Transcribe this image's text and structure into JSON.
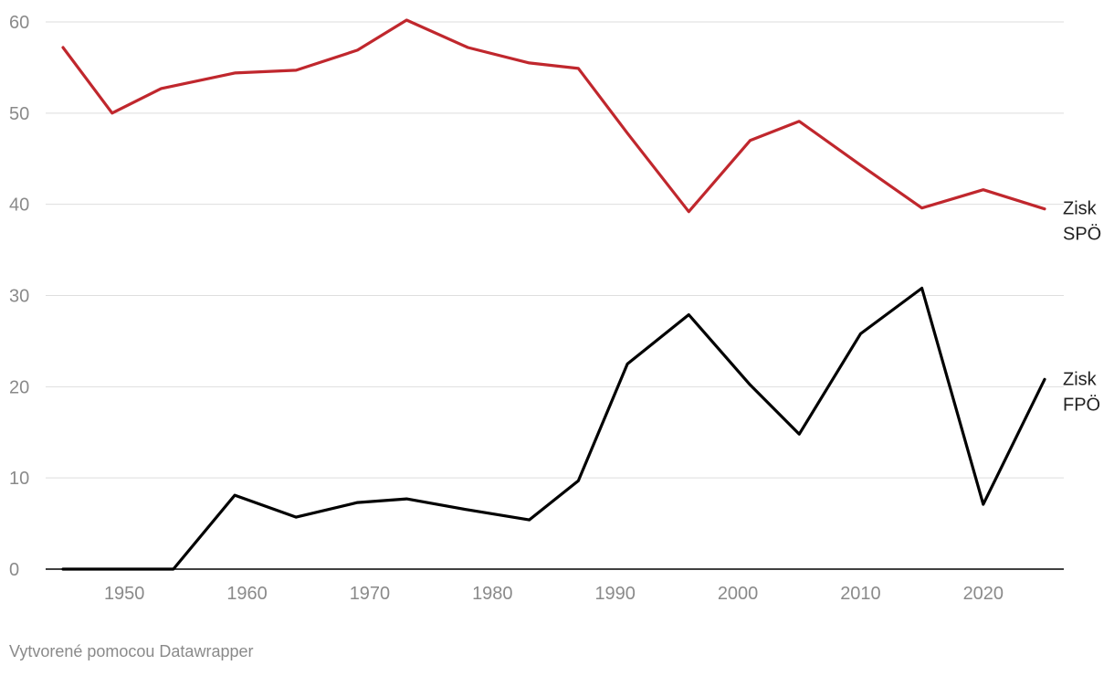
{
  "chart_data": {
    "type": "line",
    "title": "",
    "xlabel": "",
    "ylabel": "",
    "xlim": [
      1944,
      2026
    ],
    "ylim": [
      0,
      60
    ],
    "x_ticks": [
      1950,
      1960,
      1970,
      1980,
      1990,
      2000,
      2010,
      2020
    ],
    "y_ticks": [
      0,
      10,
      20,
      30,
      40,
      50,
      60
    ],
    "grid": "horizontal",
    "legend": "direct labels at line ends",
    "series": [
      {
        "name": "Zisk SPÖ",
        "label_lines": [
          "Zisk",
          "SPÖ"
        ],
        "color": "#c0272d",
        "points": [
          [
            1945,
            57.2
          ],
          [
            1949,
            50.0
          ],
          [
            1953,
            52.7
          ],
          [
            1959,
            54.4
          ],
          [
            1964,
            54.7
          ],
          [
            1969,
            56.9
          ],
          [
            1973,
            60.2
          ],
          [
            1978,
            57.2
          ],
          [
            1983,
            55.5
          ],
          [
            1987,
            54.9
          ],
          [
            1991,
            47.8
          ],
          [
            1996,
            39.2
          ],
          [
            2001,
            47.0
          ],
          [
            2005,
            49.1
          ],
          [
            2010,
            44.3
          ],
          [
            2015,
            39.6
          ],
          [
            2020,
            41.6
          ],
          [
            2025,
            39.5
          ]
        ]
      },
      {
        "name": "Zisk FPÖ",
        "label_lines": [
          "Zisk",
          "FPÖ"
        ],
        "color": "#000000",
        "points": [
          [
            1945,
            0
          ],
          [
            1949,
            0
          ],
          [
            1954,
            0
          ],
          [
            1959,
            8.1
          ],
          [
            1964,
            5.7
          ],
          [
            1969,
            7.3
          ],
          [
            1973,
            7.7
          ],
          [
            1978,
            6.5
          ],
          [
            1983,
            5.4
          ],
          [
            1987,
            9.7
          ],
          [
            1991,
            22.5
          ],
          [
            1996,
            27.9
          ],
          [
            2001,
            20.2
          ],
          [
            2005,
            14.8
          ],
          [
            2010,
            25.8
          ],
          [
            2015,
            30.8
          ],
          [
            2020,
            7.1
          ],
          [
            2025,
            20.8
          ]
        ]
      }
    ]
  },
  "footer": {
    "credit": "Vytvorené pomocou Datawrapper"
  },
  "colors": {
    "grid": "#dedede",
    "axis": "#000000",
    "tick_text": "#8a8a8a"
  }
}
